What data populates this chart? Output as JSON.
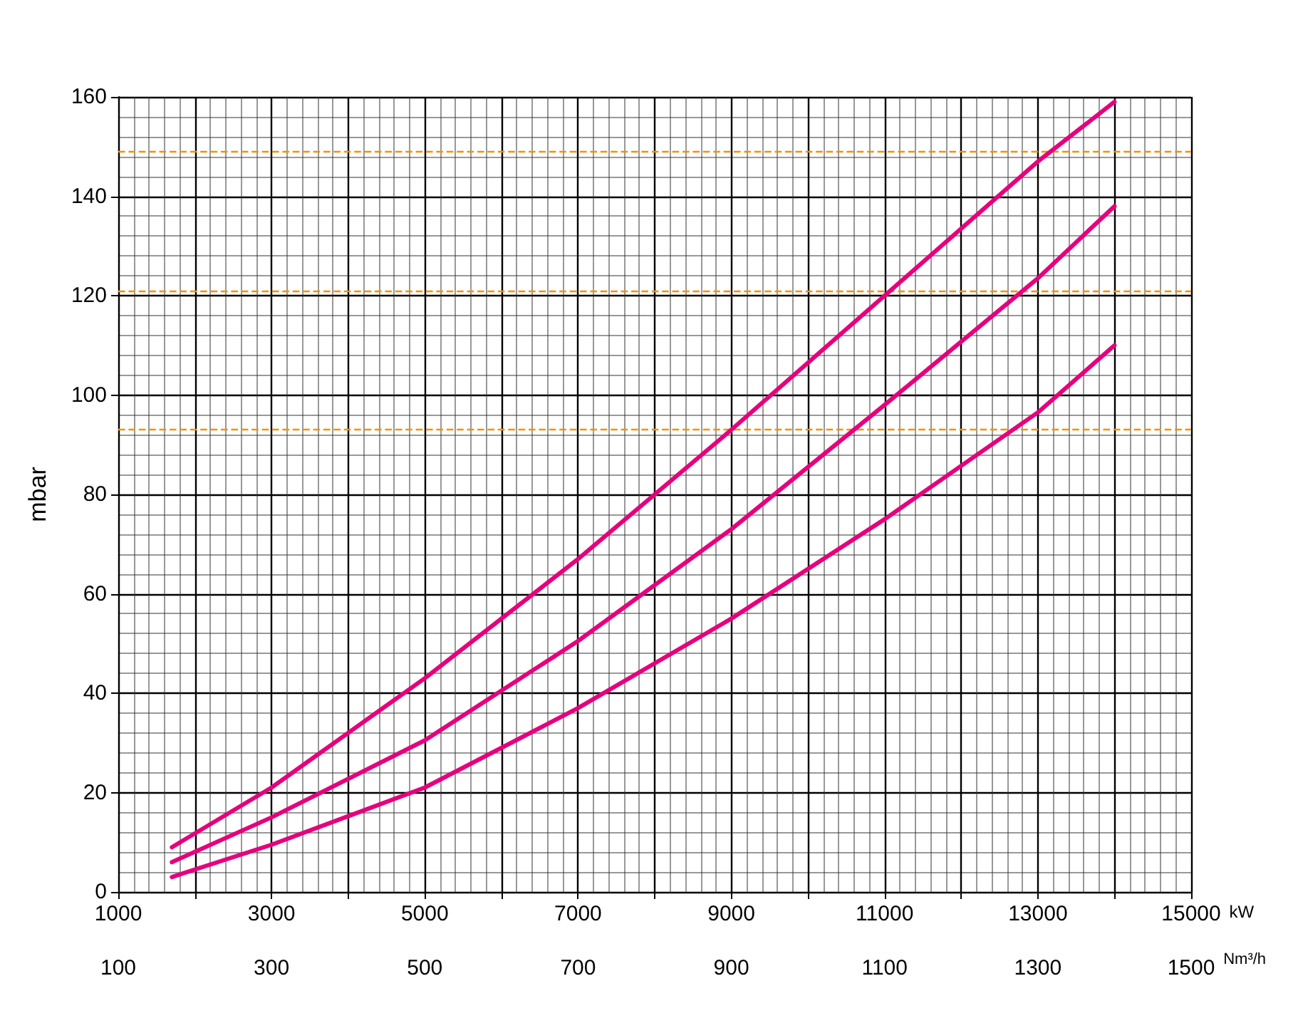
{
  "chart_data": {
    "type": "line",
    "xlabel": "kW",
    "ylabel": "mbar",
    "x2label": "Nm³/h",
    "x": [
      1700,
      3000,
      5000,
      7000,
      9000,
      11000,
      13000,
      14000
    ],
    "series": [
      {
        "color": "#e6007e",
        "values": [
          9,
          21,
          43,
          67,
          93,
          120,
          147,
          159
        ]
      },
      {
        "color": "#e6007e",
        "values": [
          6,
          15,
          30.5,
          50.5,
          73,
          98,
          123.5,
          138
        ]
      },
      {
        "color": "#e6007e",
        "values": [
          3,
          9.5,
          21,
          37,
          55,
          75,
          96.5,
          110
        ]
      }
    ],
    "xlim": [
      1000,
      15000
    ],
    "xticks": [
      1000,
      {
        "value": 2000,
        "label": null
      },
      3000,
      {
        "value": 4000,
        "label": null
      },
      5000,
      {
        "value": 6000,
        "label": null
      },
      7000,
      {
        "value": 8000,
        "label": null
      },
      9000,
      {
        "value": 10000,
        "label": null
      },
      11000,
      {
        "value": 12000,
        "label": null
      },
      13000,
      {
        "value": 14000,
        "label": null
      },
      15000
    ],
    "ylim": [
      0,
      160
    ],
    "yticks": [
      0,
      20,
      40,
      60,
      80,
      100,
      120,
      140,
      160
    ],
    "x2lim": [
      100,
      1500
    ],
    "x2ticks": [
      100,
      300,
      500,
      700,
      900,
      1100,
      1300,
      1500
    ],
    "ref_lines": [
      {
        "axis": "y",
        "value": 149,
        "color": "#f39200",
        "line_style": "dashed"
      },
      {
        "axis": "y",
        "value": 121,
        "color": "#f39200",
        "line_style": "dashed"
      },
      {
        "axis": "y",
        "value": 93,
        "color": "#f39200",
        "line_style": "dashed"
      }
    ],
    "grid": true,
    "marker": "none",
    "line_style": "solid"
  }
}
